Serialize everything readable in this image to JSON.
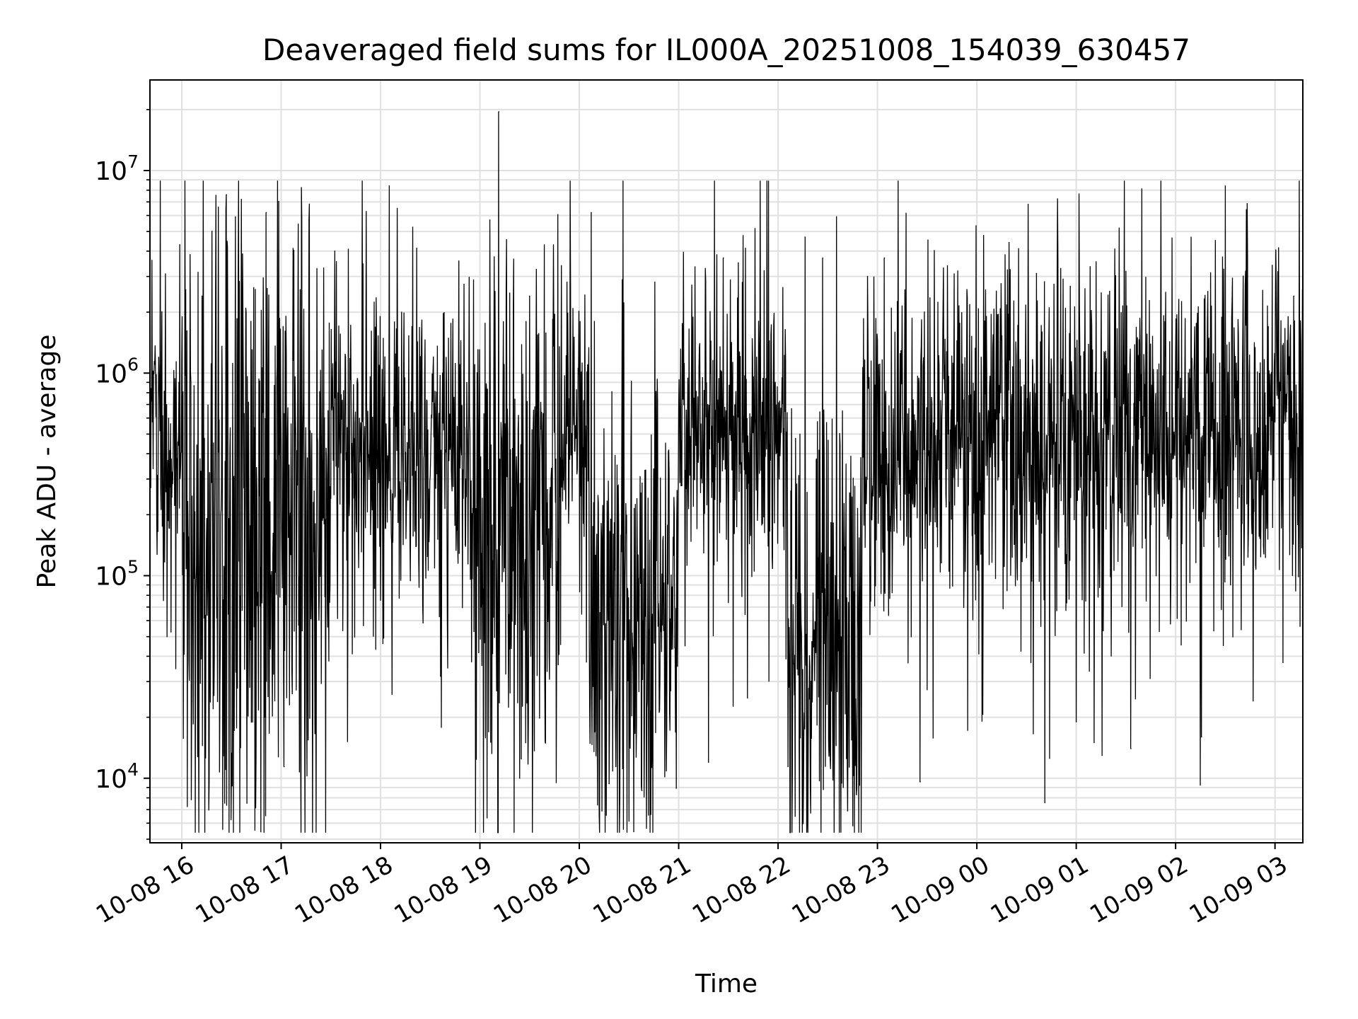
{
  "chart_data": {
    "type": "line",
    "title": "Deaveraged field sums for IL000A_20251008_154039_630457",
    "xlabel": "Time",
    "ylabel": "Peak ADU - average",
    "yscale": "log",
    "ylim": [
      4800,
      28000000
    ],
    "xlim_hours": [
      15.68,
      27.28
    ],
    "grid": true,
    "grid_minor": true,
    "line_color": "#000000",
    "grid_color": "#e0e0e0",
    "x_ticks": [
      {
        "hour": 16,
        "label": "10-08 16"
      },
      {
        "hour": 17,
        "label": "10-08 17"
      },
      {
        "hour": 18,
        "label": "10-08 18"
      },
      {
        "hour": 19,
        "label": "10-08 19"
      },
      {
        "hour": 20,
        "label": "10-08 20"
      },
      {
        "hour": 21,
        "label": "10-08 21"
      },
      {
        "hour": 22,
        "label": "10-08 22"
      },
      {
        "hour": 23,
        "label": "10-08 23"
      },
      {
        "hour": 24,
        "label": "10-09 00"
      },
      {
        "hour": 25,
        "label": "10-09 01"
      },
      {
        "hour": 26,
        "label": "10-09 02"
      },
      {
        "hour": 27,
        "label": "10-09 03"
      }
    ],
    "y_ticks": [
      {
        "value": 10000,
        "base": "10",
        "exp": "4"
      },
      {
        "value": 100000,
        "base": "10",
        "exp": "5"
      },
      {
        "value": 1000000,
        "base": "10",
        "exp": "6"
      },
      {
        "value": 10000000,
        "base": "10",
        "exp": "7"
      }
    ],
    "series": [
      {
        "name": "Deaveraged field sum",
        "sample_interval_hours": 0.004,
        "segments": [
          {
            "start": 15.68,
            "end": 16.0,
            "median": 500000,
            "spread": 0.35
          },
          {
            "start": 16.0,
            "end": 17.5,
            "median": 170000,
            "spread": 0.75
          },
          {
            "start": 17.5,
            "end": 18.9,
            "median": 420000,
            "spread": 0.35
          },
          {
            "start": 18.9,
            "end": 19.8,
            "median": 180000,
            "spread": 0.7
          },
          {
            "start": 19.8,
            "end": 20.1,
            "median": 500000,
            "spread": 0.35
          },
          {
            "start": 20.1,
            "end": 21.0,
            "median": 70000,
            "spread": 0.55
          },
          {
            "start": 21.0,
            "end": 22.1,
            "median": 550000,
            "spread": 0.3
          },
          {
            "start": 22.1,
            "end": 22.85,
            "median": 45000,
            "spread": 0.6
          },
          {
            "start": 22.85,
            "end": 27.28,
            "median": 480000,
            "spread": 0.4
          }
        ],
        "peaks": [
          {
            "hour": 19.19,
            "value": 19500000
          },
          {
            "hour": 16.45,
            "value": 7600000
          },
          {
            "hour": 16.6,
            "value": 7200000
          },
          {
            "hour": 16.54,
            "value": 5900000
          },
          {
            "hour": 16.85,
            "value": 6200000
          },
          {
            "hour": 17.28,
            "value": 5700000
          },
          {
            "hour": 19.1,
            "value": 5700000
          },
          {
            "hour": 20.12,
            "value": 6200000
          },
          {
            "hour": 15.98,
            "value": 4300000
          },
          {
            "hour": 17.54,
            "value": 4000000
          },
          {
            "hour": 21.45,
            "value": 3700000
          },
          {
            "hour": 21.6,
            "value": 3500000
          },
          {
            "hour": 22.45,
            "value": 3700000
          },
          {
            "hour": 19.5,
            "value": 2400000
          },
          {
            "hour": 23.07,
            "value": 3700000
          },
          {
            "hour": 24.6,
            "value": 3100000
          },
          {
            "hour": 27.19,
            "value": 2400000
          }
        ],
        "dips": [
          {
            "hour": 16.5,
            "value": 10800
          },
          {
            "hour": 17.03,
            "value": 11400
          },
          {
            "hour": 20.63,
            "value": 8700
          },
          {
            "hour": 22.7,
            "value": 6900
          },
          {
            "hour": 22.79,
            "value": 8300
          },
          {
            "hour": 21.3,
            "value": 12000
          },
          {
            "hour": 23.43,
            "value": 9600
          },
          {
            "hour": 20.3,
            "value": 9400
          },
          {
            "hour": 25.55,
            "value": 14000
          },
          {
            "hour": 25.0,
            "value": 19000
          },
          {
            "hour": 16.1,
            "value": 24000
          },
          {
            "hour": 26.26,
            "value": 16000
          }
        ]
      }
    ]
  }
}
